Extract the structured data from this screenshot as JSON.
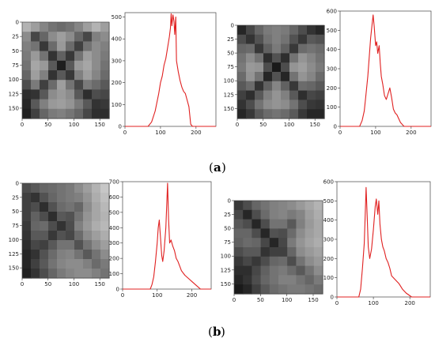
{
  "captions": [
    "a",
    "b"
  ],
  "chart_data": [
    {
      "type": "heatmap",
      "image": "grayscale X-pattern sample (a, left)",
      "xticks": [
        0,
        50,
        100,
        150
      ],
      "yticks": [
        0,
        25,
        50,
        75,
        100,
        125,
        150
      ],
      "xlim": [
        0,
        168
      ],
      "ylim": [
        0,
        168
      ],
      "cells": [
        [
          0.7,
          0.62,
          0.52,
          0.45,
          0.42,
          0.45,
          0.52,
          0.62,
          0.7,
          0.62
        ],
        [
          0.55,
          0.28,
          0.4,
          0.55,
          0.62,
          0.55,
          0.4,
          0.28,
          0.5,
          0.55
        ],
        [
          0.5,
          0.45,
          0.22,
          0.42,
          0.6,
          0.42,
          0.25,
          0.45,
          0.55,
          0.5
        ],
        [
          0.48,
          0.6,
          0.45,
          0.2,
          0.38,
          0.22,
          0.45,
          0.62,
          0.55,
          0.48
        ],
        [
          0.45,
          0.65,
          0.6,
          0.35,
          0.12,
          0.35,
          0.6,
          0.65,
          0.55,
          0.45
        ],
        [
          0.4,
          0.62,
          0.5,
          0.2,
          0.35,
          0.22,
          0.5,
          0.62,
          0.52,
          0.42
        ],
        [
          0.3,
          0.48,
          0.25,
          0.42,
          0.62,
          0.45,
          0.28,
          0.48,
          0.42,
          0.35
        ],
        [
          0.18,
          0.2,
          0.35,
          0.55,
          0.6,
          0.55,
          0.35,
          0.18,
          0.3,
          0.28
        ],
        [
          0.15,
          0.35,
          0.5,
          0.6,
          0.62,
          0.58,
          0.48,
          0.35,
          0.2,
          0.22
        ],
        [
          0.12,
          0.25,
          0.4,
          0.48,
          0.5,
          0.46,
          0.4,
          0.28,
          0.18,
          0.18
        ]
      ]
    },
    {
      "type": "line",
      "xlim": [
        0,
        256
      ],
      "ylim": [
        0,
        520
      ],
      "xticks": [
        0,
        100,
        200
      ],
      "yticks": [
        0,
        100,
        200,
        300,
        400,
        500
      ],
      "color": "#e02020",
      "x": [
        0,
        65,
        75,
        85,
        95,
        100,
        105,
        110,
        115,
        120,
        125,
        128,
        130,
        132,
        135,
        138,
        140,
        143,
        145,
        150,
        155,
        160,
        165,
        170,
        175,
        180,
        185,
        190,
        200,
        256
      ],
      "y": [
        0,
        0,
        20,
        70,
        150,
        200,
        230,
        280,
        310,
        360,
        410,
        450,
        515,
        460,
        510,
        480,
        420,
        500,
        300,
        250,
        210,
        180,
        160,
        150,
        120,
        90,
        10,
        0,
        0,
        0
      ]
    },
    {
      "type": "heatmap",
      "image": "grayscale X-pattern sample (a, right)",
      "xticks": [
        0,
        50,
        100,
        150
      ],
      "yticks": [
        0,
        25,
        50,
        75,
        100,
        125,
        150
      ],
      "xlim": [
        0,
        168
      ],
      "ylim": [
        0,
        168
      ],
      "cells": [
        [
          0.15,
          0.28,
          0.4,
          0.48,
          0.5,
          0.48,
          0.4,
          0.3,
          0.2,
          0.15
        ],
        [
          0.3,
          0.2,
          0.32,
          0.45,
          0.5,
          0.45,
          0.32,
          0.22,
          0.35,
          0.32
        ],
        [
          0.4,
          0.42,
          0.22,
          0.38,
          0.48,
          0.38,
          0.22,
          0.42,
          0.45,
          0.42
        ],
        [
          0.45,
          0.55,
          0.45,
          0.18,
          0.32,
          0.18,
          0.45,
          0.58,
          0.52,
          0.45
        ],
        [
          0.48,
          0.6,
          0.58,
          0.3,
          0.1,
          0.3,
          0.58,
          0.62,
          0.55,
          0.48
        ],
        [
          0.42,
          0.58,
          0.45,
          0.15,
          0.32,
          0.15,
          0.45,
          0.58,
          0.52,
          0.42
        ],
        [
          0.35,
          0.42,
          0.2,
          0.38,
          0.52,
          0.38,
          0.22,
          0.42,
          0.4,
          0.35
        ],
        [
          0.25,
          0.18,
          0.35,
          0.5,
          0.58,
          0.5,
          0.35,
          0.18,
          0.28,
          0.25
        ],
        [
          0.2,
          0.3,
          0.45,
          0.55,
          0.58,
          0.55,
          0.45,
          0.3,
          0.22,
          0.2
        ],
        [
          0.15,
          0.22,
          0.35,
          0.42,
          0.45,
          0.42,
          0.35,
          0.22,
          0.15,
          0.15
        ]
      ]
    },
    {
      "type": "line",
      "xlim": [
        0,
        256
      ],
      "ylim": [
        0,
        600
      ],
      "xticks": [
        0,
        100,
        200
      ],
      "yticks": [
        0,
        100,
        200,
        300,
        400,
        500,
        600
      ],
      "color": "#e02020",
      "x": [
        0,
        55,
        62,
        68,
        72,
        78,
        82,
        86,
        90,
        93,
        96,
        100,
        103,
        106,
        110,
        113,
        116,
        120,
        125,
        130,
        135,
        140,
        145,
        150,
        155,
        160,
        165,
        170,
        180,
        256
      ],
      "y": [
        0,
        0,
        30,
        80,
        150,
        260,
        360,
        460,
        530,
        580,
        520,
        420,
        440,
        380,
        420,
        330,
        260,
        220,
        160,
        140,
        170,
        200,
        150,
        90,
        70,
        60,
        40,
        20,
        0,
        0
      ]
    },
    {
      "type": "heatmap",
      "image": "grayscale X-pattern sample (b, left)",
      "xticks": [
        0,
        50,
        100,
        150
      ],
      "yticks": [
        0,
        25,
        50,
        75,
        100,
        125,
        150
      ],
      "xlim": [
        0,
        168
      ],
      "ylim": [
        0,
        168
      ],
      "cells": [
        [
          0.3,
          0.35,
          0.4,
          0.42,
          0.45,
          0.48,
          0.55,
          0.62,
          0.7,
          0.78
        ],
        [
          0.25,
          0.2,
          0.32,
          0.4,
          0.45,
          0.48,
          0.5,
          0.58,
          0.68,
          0.75
        ],
        [
          0.25,
          0.3,
          0.18,
          0.32,
          0.42,
          0.45,
          0.4,
          0.55,
          0.65,
          0.72
        ],
        [
          0.25,
          0.38,
          0.3,
          0.18,
          0.35,
          0.32,
          0.45,
          0.58,
          0.65,
          0.7
        ],
        [
          0.22,
          0.4,
          0.42,
          0.3,
          0.2,
          0.3,
          0.5,
          0.6,
          0.68,
          0.72
        ],
        [
          0.2,
          0.35,
          0.35,
          0.22,
          0.32,
          0.28,
          0.42,
          0.55,
          0.62,
          0.68
        ],
        [
          0.18,
          0.28,
          0.25,
          0.35,
          0.45,
          0.45,
          0.32,
          0.45,
          0.55,
          0.62
        ],
        [
          0.15,
          0.2,
          0.32,
          0.42,
          0.5,
          0.52,
          0.45,
          0.35,
          0.45,
          0.55
        ],
        [
          0.15,
          0.25,
          0.35,
          0.45,
          0.52,
          0.55,
          0.55,
          0.5,
          0.42,
          0.48
        ],
        [
          0.12,
          0.2,
          0.3,
          0.4,
          0.48,
          0.52,
          0.55,
          0.55,
          0.5,
          0.45
        ]
      ]
    },
    {
      "type": "line",
      "xlim": [
        0,
        256
      ],
      "ylim": [
        0,
        700
      ],
      "xticks": [
        0,
        100,
        200
      ],
      "yticks": [
        0,
        100,
        200,
        300,
        400,
        500,
        600,
        700
      ],
      "color": "#e02020",
      "x": [
        0,
        80,
        85,
        90,
        95,
        100,
        103,
        106,
        110,
        113,
        116,
        120,
        125,
        130,
        133,
        136,
        140,
        145,
        150,
        155,
        160,
        165,
        170,
        180,
        190,
        200,
        210,
        220,
        225,
        256
      ],
      "y": [
        0,
        0,
        30,
        80,
        180,
        300,
        400,
        450,
        320,
        220,
        180,
        250,
        400,
        690,
        450,
        300,
        320,
        280,
        250,
        200,
        180,
        150,
        120,
        90,
        70,
        50,
        30,
        10,
        0,
        0
      ]
    },
    {
      "type": "heatmap",
      "image": "grayscale X-pattern sample (b, right)",
      "xticks": [
        0,
        50,
        100,
        150
      ],
      "yticks": [
        0,
        25,
        50,
        75,
        100,
        125,
        150
      ],
      "xlim": [
        0,
        168
      ],
      "ylim": [
        0,
        168
      ],
      "cells": [
        [
          0.22,
          0.3,
          0.4,
          0.45,
          0.5,
          0.52,
          0.55,
          0.6,
          0.65,
          0.7
        ],
        [
          0.28,
          0.15,
          0.3,
          0.42,
          0.5,
          0.52,
          0.48,
          0.52,
          0.62,
          0.68
        ],
        [
          0.35,
          0.3,
          0.15,
          0.3,
          0.45,
          0.45,
          0.35,
          0.5,
          0.6,
          0.66
        ],
        [
          0.4,
          0.4,
          0.3,
          0.15,
          0.32,
          0.3,
          0.42,
          0.55,
          0.62,
          0.66
        ],
        [
          0.38,
          0.42,
          0.4,
          0.28,
          0.15,
          0.28,
          0.48,
          0.58,
          0.64,
          0.68
        ],
        [
          0.3,
          0.35,
          0.35,
          0.2,
          0.25,
          0.25,
          0.4,
          0.55,
          0.6,
          0.64
        ],
        [
          0.22,
          0.28,
          0.22,
          0.3,
          0.4,
          0.42,
          0.3,
          0.45,
          0.55,
          0.6
        ],
        [
          0.18,
          0.18,
          0.28,
          0.38,
          0.45,
          0.48,
          0.42,
          0.35,
          0.45,
          0.55
        ],
        [
          0.15,
          0.2,
          0.3,
          0.4,
          0.45,
          0.5,
          0.5,
          0.45,
          0.4,
          0.48
        ],
        [
          0.1,
          0.15,
          0.25,
          0.35,
          0.42,
          0.45,
          0.48,
          0.48,
          0.45,
          0.42
        ]
      ]
    },
    {
      "type": "line",
      "xlim": [
        0,
        256
      ],
      "ylim": [
        0,
        600
      ],
      "xticks": [
        0,
        100,
        200
      ],
      "yticks": [
        0,
        100,
        200,
        300,
        400,
        500,
        600
      ],
      "color": "#e02020",
      "x": [
        0,
        60,
        65,
        70,
        75,
        78,
        80,
        83,
        86,
        90,
        95,
        100,
        105,
        108,
        112,
        115,
        118,
        122,
        126,
        130,
        135,
        140,
        145,
        150,
        160,
        170,
        180,
        190,
        205,
        256
      ],
      "y": [
        0,
        0,
        40,
        150,
        280,
        450,
        570,
        420,
        260,
        200,
        250,
        350,
        470,
        510,
        430,
        500,
        380,
        300,
        260,
        240,
        200,
        180,
        150,
        110,
        90,
        70,
        40,
        20,
        0,
        0
      ]
    }
  ]
}
